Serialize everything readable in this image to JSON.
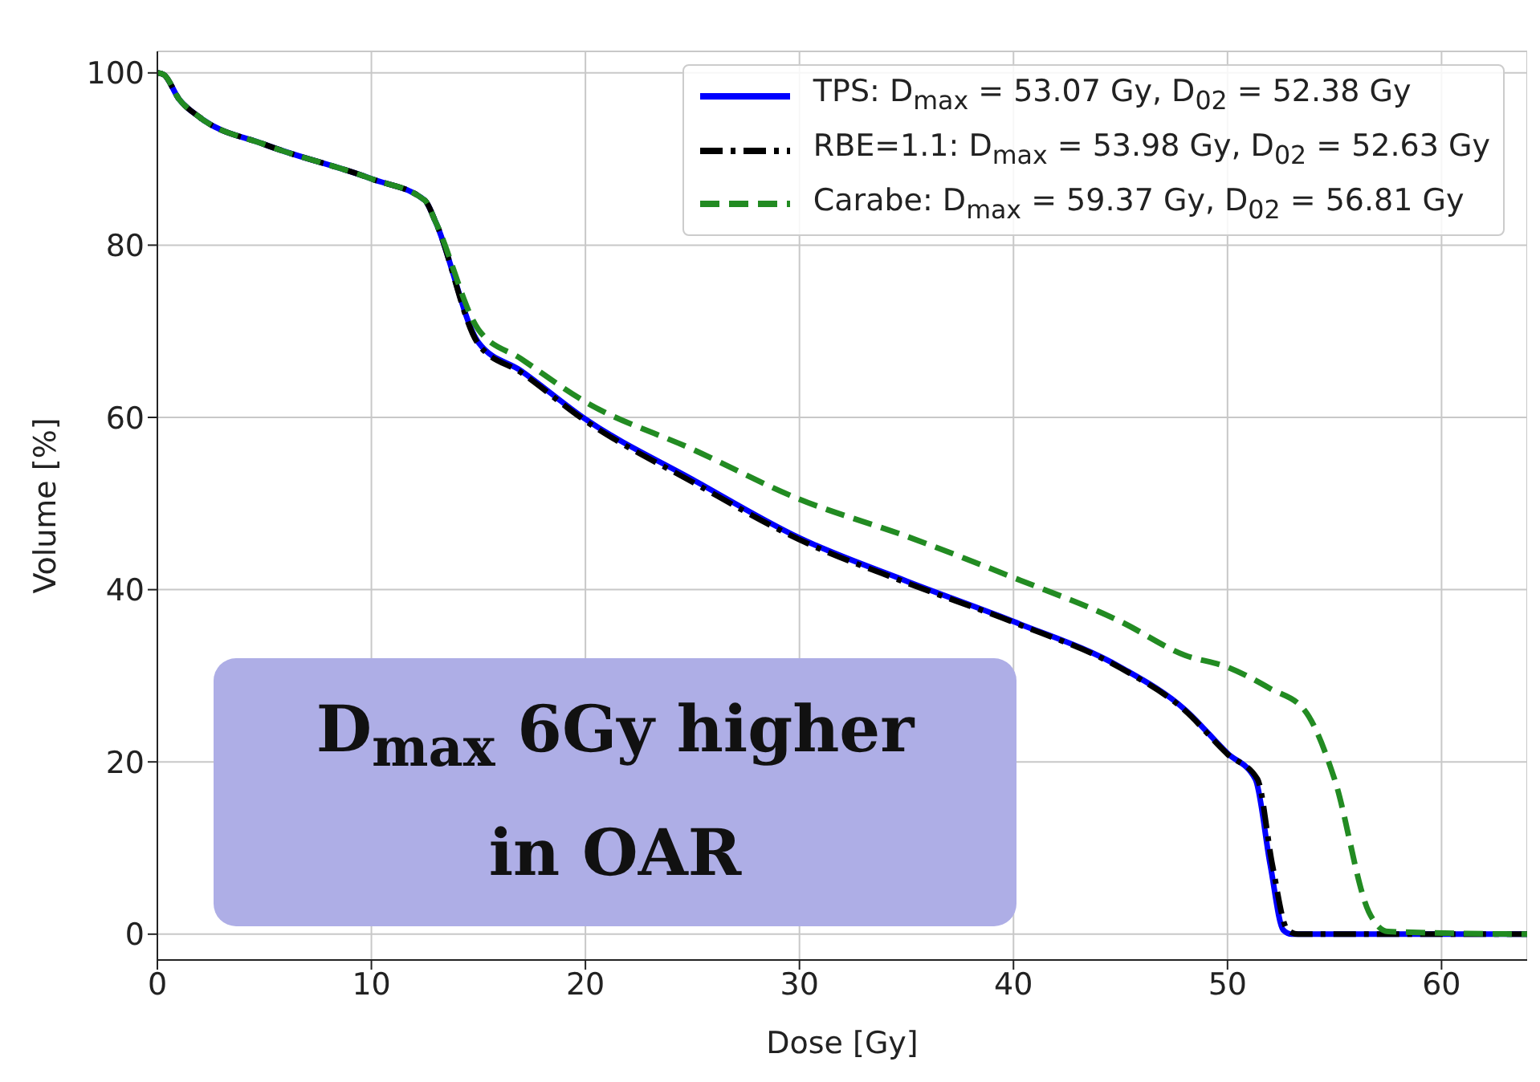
{
  "chart_data": {
    "type": "line",
    "xlabel": "Dose [Gy]",
    "ylabel": "Volume [%]",
    "xlim": [
      0,
      64
    ],
    "xticks": [
      0,
      10,
      20,
      30,
      40,
      50,
      60
    ],
    "ylim": [
      -3,
      102.5
    ],
    "yticks": [
      0,
      20,
      40,
      60,
      80,
      100
    ],
    "grid": true,
    "legend": "top right",
    "annotations": [
      "D$_{max}$ 6Gy higher in OAR"
    ],
    "series": [
      {
        "name": "TPS: D$_{max}$ = 53.07 Gy, D$_{02}$ = 52.38 Gy",
        "color": "#0000ff",
        "line_style": "solid",
        "x": [
          0,
          0.3,
          1,
          2,
          5,
          10,
          12.5,
          13,
          15,
          17,
          20,
          25,
          30,
          35,
          40,
          45,
          48,
          50,
          51.3,
          52,
          52.6,
          53,
          64
        ],
        "values": [
          100,
          99.8,
          97,
          94.8,
          91.7,
          87.7,
          85.2,
          82.7,
          68.7,
          65.4,
          59.8,
          52.8,
          46,
          41,
          36.3,
          31,
          26.1,
          21,
          18,
          8,
          0.5,
          0,
          0
        ]
      },
      {
        "name": "RBE=1.1: D$_{max}$ = 53.98 Gy, D$_{02}$ = 52.63 Gy",
        "color": "#000000",
        "line_style": "dashdot",
        "x": [
          0,
          0.3,
          1,
          2,
          5,
          10,
          12.5,
          13,
          15,
          17,
          20,
          25,
          30,
          35,
          40,
          45,
          48,
          50,
          51.4,
          52.1,
          52.8,
          53.3,
          64
        ],
        "values": [
          100,
          99.8,
          97,
          94.8,
          91.7,
          87.7,
          85.2,
          82.7,
          68.5,
          65.2,
          59.6,
          52.5,
          45.8,
          40.8,
          36.2,
          30.9,
          26,
          20.9,
          18,
          8,
          0.5,
          0,
          0
        ]
      },
      {
        "name": "Carabe: D$_{max}$ = 59.37 Gy, D$_{02}$ = 56.81 Gy",
        "color": "#228b22",
        "line_style": "dashed",
        "x": [
          0,
          0.3,
          1,
          2,
          5,
          10,
          12.5,
          13,
          15,
          17,
          20,
          25,
          30,
          35,
          40,
          45,
          48,
          50,
          52,
          53.6,
          55,
          56.6,
          57.5,
          64
        ],
        "values": [
          100,
          99.8,
          97,
          94.8,
          91.7,
          87.7,
          85.2,
          82.7,
          70.2,
          66.8,
          61.8,
          56.3,
          50.5,
          46.2,
          41.4,
          36.3,
          32.4,
          31,
          28.5,
          26,
          18,
          2.6,
          0.3,
          0
        ]
      }
    ]
  }
}
